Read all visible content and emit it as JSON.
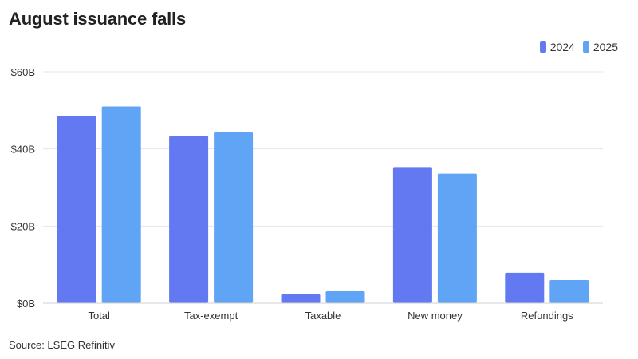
{
  "chart_data": {
    "type": "bar",
    "title": "August issuance falls",
    "source": "Source: LSEG Refinitiv",
    "categories": [
      "Total",
      "Tax-exempt",
      "Taxable",
      "New money",
      "Refundings"
    ],
    "series": [
      {
        "name": "2024",
        "color": "#6379f2",
        "values": [
          48.5,
          43.3,
          2.3,
          35.3,
          7.9
        ]
      },
      {
        "name": "2025",
        "color": "#60a5f5",
        "values": [
          51.0,
          44.3,
          3.1,
          33.6,
          6.0
        ]
      }
    ],
    "ylim": [
      0,
      60
    ],
    "yticks": [
      0,
      20,
      40,
      60
    ],
    "ytick_labels": [
      "$0B",
      "$20B",
      "$40B",
      "$60B"
    ],
    "xlabel": "",
    "ylabel": "",
    "grid": true,
    "legend_position": "top-right"
  }
}
